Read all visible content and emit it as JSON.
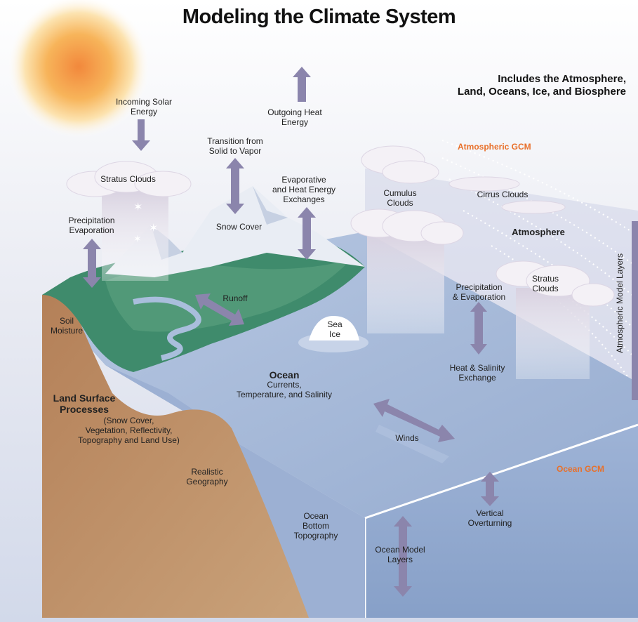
{
  "title": "Modeling the Climate System",
  "subtitle": "Includes the Atmosphere,\nLand, Oceans, Ice, and Biosphere",
  "model_labels": {
    "atmospheric_gcm": "Atmospheric GCM",
    "ocean_gcm": "Ocean GCM"
  },
  "labels": {
    "incoming_solar": "Incoming Solar\nEnergy",
    "outgoing_heat": "Outgoing Heat\nEnergy",
    "transition": "Transition from\nSolid to Vapor",
    "evaporative": "Evaporative\nand Heat Energy\nExchanges",
    "stratus_left": "Stratus Clouds",
    "precip_evap_left": "Precipitation\nEvaporation",
    "snow_cover": "Snow Cover",
    "cumulus": "Cumulus\nClouds",
    "cirrus": "Cirrus Clouds",
    "atmosphere": "Atmosphere",
    "stratus_right": "Stratus\nClouds",
    "precip_evap_right": "Precipitation\n& Evaporation",
    "heat_salinity": "Heat & Salinity\nExchange",
    "atmos_layers": "Atmospheric Model Layers",
    "runoff": "Runoff",
    "sea_ice": "Sea\nIce",
    "soil_moisture": "Soil\nMoisture",
    "ocean": "Ocean",
    "ocean_sub": "Currents,\nTemperature, and Salinity",
    "land_surface": "Land Surface\nProcesses",
    "land_surface_sub": "(Snow Cover,\nVegetation, Reflectivity,\nTopography and Land Use)",
    "winds": "Winds",
    "realistic_geo": "Realistic\nGeography",
    "ocean_bottom": "Ocean\nBottom\nTopography",
    "vertical_overturning": "Vertical\nOverturning",
    "ocean_layers": "Ocean Model\nLayers"
  },
  "colors": {
    "sky": "#dfe3ef",
    "ocean_surface": "#a8bcd9",
    "ocean_side": "#8fa6c9",
    "land_brown": "#b98a62",
    "land_green": "#3e8a6a",
    "arrow": "#8c86ad",
    "sun": "#f4a24a",
    "accent": "#e8702a"
  }
}
